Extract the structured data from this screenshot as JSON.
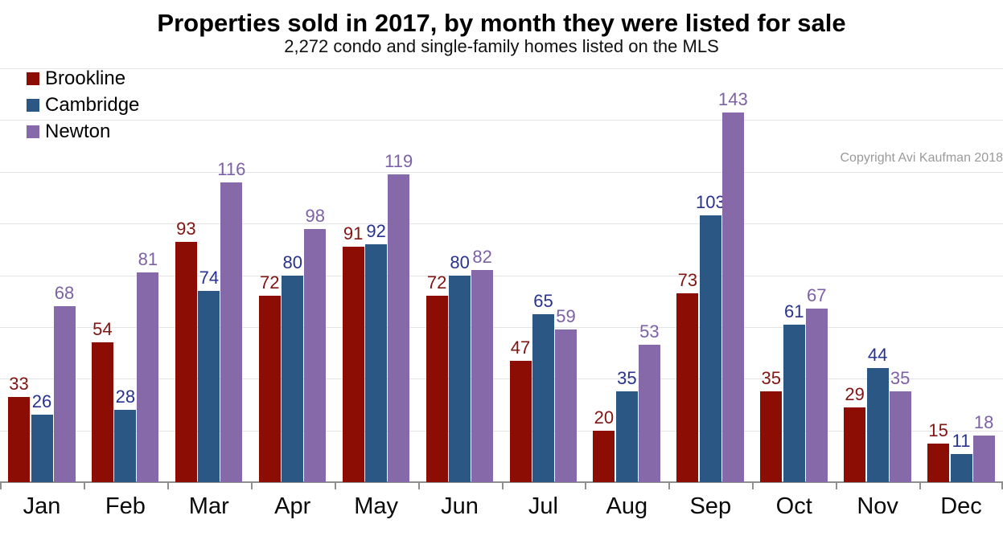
{
  "header": {
    "title": "Properties sold in 2017, by month they were listed for sale",
    "subtitle": "2,272 condo and single-family homes listed on the MLS"
  },
  "copyright": "Copyright Avi Kaufman 2018",
  "colors": {
    "gridline": "#e4e4e8",
    "axis": "#8e8e8e",
    "copyright_text": "#9a9a9a",
    "background": "#ffffff"
  },
  "chart_data": {
    "type": "bar",
    "title": "Properties sold in 2017, by month they were listed for sale",
    "subtitle": "2,272 condo and single-family homes listed on the MLS",
    "xlabel": "",
    "ylabel": "",
    "categories": [
      "Jan",
      "Feb",
      "Mar",
      "Apr",
      "May",
      "Jun",
      "Jul",
      "Aug",
      "Sep",
      "Oct",
      "Nov",
      "Dec"
    ],
    "series": [
      {
        "name": "Brookline",
        "color": "#8b0d04",
        "label_color": "#801512",
        "values": [
          33,
          54,
          93,
          72,
          91,
          72,
          47,
          20,
          73,
          35,
          29,
          15
        ]
      },
      {
        "name": "Cambridge",
        "color": "#2a5783",
        "label_color": "#28328f",
        "values": [
          26,
          28,
          74,
          80,
          92,
          80,
          65,
          35,
          103,
          61,
          44,
          11
        ]
      },
      {
        "name": "Newton",
        "color": "#8569a9",
        "label_color": "#7c61a6",
        "values": [
          68,
          81,
          116,
          98,
          119,
          82,
          59,
          53,
          143,
          67,
          35,
          18
        ]
      }
    ],
    "ylim": [
      0,
      160
    ],
    "gridline_step": 20,
    "grid": true,
    "legend_position": "top-left",
    "value_labels": true
  }
}
